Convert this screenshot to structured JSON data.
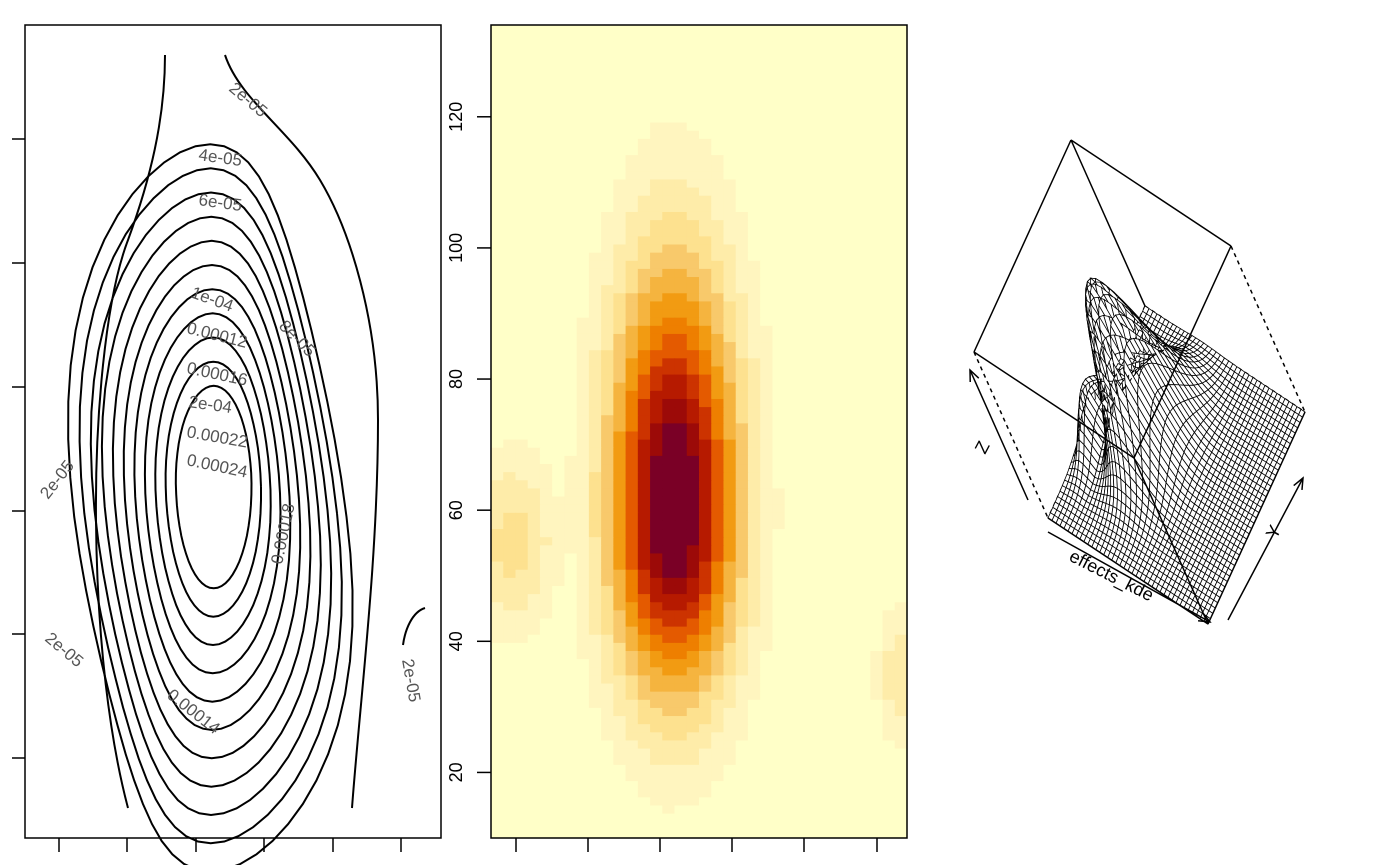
{
  "colors": {
    "line": "#000000",
    "label": "#555555",
    "heat": [
      "#ffffc8",
      "#fff5bf",
      "#feeca9",
      "#fde18f",
      "#f8c96b",
      "#f5b43f",
      "#f29b12",
      "#ee7f00",
      "#e45a00",
      "#cc3300",
      "#b61a00",
      "#9c0a08",
      "#7a0026"
    ]
  },
  "contour": {
    "lines": [
      {
        "level": "2e-05"
      },
      {
        "level": "4e-05"
      },
      {
        "level": "6e-05"
      },
      {
        "level": "8e-05"
      },
      {
        "level": "1e-04"
      },
      {
        "level": "0.00012"
      },
      {
        "level": "0.00014"
      },
      {
        "level": "0.00016"
      },
      {
        "level": "0.00018"
      },
      {
        "level": "2e-04"
      },
      {
        "level": "0.00022"
      },
      {
        "level": "0.00024"
      }
    ]
  },
  "chart_data": [
    {
      "type": "contour",
      "title": "",
      "xlabel": "",
      "ylabel": "",
      "levels": [
        "2e-05",
        "4e-05",
        "6e-05",
        "8e-05",
        "1e-04",
        "0.00012",
        "0.00014",
        "0.00016",
        "0.00018",
        "2e-04",
        "0.00022",
        "0.00024"
      ],
      "peak": {
        "x_frac": 0.45,
        "y": 60
      },
      "ylim": [
        10,
        134
      ]
    },
    {
      "type": "heatmap",
      "title": "",
      "xlabel": "",
      "ylabel": "",
      "ylim": [
        10,
        134
      ],
      "y_ticks": [
        "20",
        "40",
        "60",
        "80",
        "100",
        "120"
      ],
      "color_levels": 13,
      "peak": {
        "x_frac": 0.44,
        "y": 60
      }
    },
    {
      "type": "surface",
      "title": "",
      "xlabel": "effects_kde",
      "ylabel": "Y",
      "zlabel": "Z"
    }
  ]
}
